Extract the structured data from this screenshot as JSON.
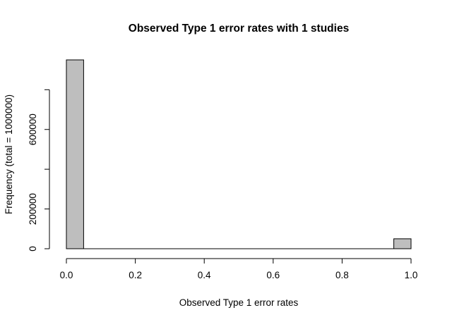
{
  "chart_data": {
    "type": "bar",
    "title": "Observed Type 1 error rates with 1 studies",
    "xlabel": "Observed Type 1 error rates",
    "ylabel": "Frequency (total = 1000000)",
    "bins": [
      {
        "start": 0.0,
        "end": 0.05,
        "count": 950000
      },
      {
        "start": 0.95,
        "end": 1.0,
        "count": 50000
      }
    ],
    "xlim": [
      0,
      1
    ],
    "ylim": [
      0,
      950000
    ],
    "x_ticks": [
      0.0,
      0.2,
      0.4,
      0.6,
      0.8,
      1.0
    ],
    "x_tick_labels": [
      "0.0",
      "0.2",
      "0.4",
      "0.6",
      "0.8",
      "1.0"
    ],
    "y_ticks": [
      0,
      200000,
      400000,
      600000,
      800000
    ],
    "y_tick_labels": [
      "0",
      "200000",
      "",
      "600000",
      ""
    ],
    "grid": false,
    "bar_fill": "#bebebe",
    "bar_stroke": "#000000"
  }
}
